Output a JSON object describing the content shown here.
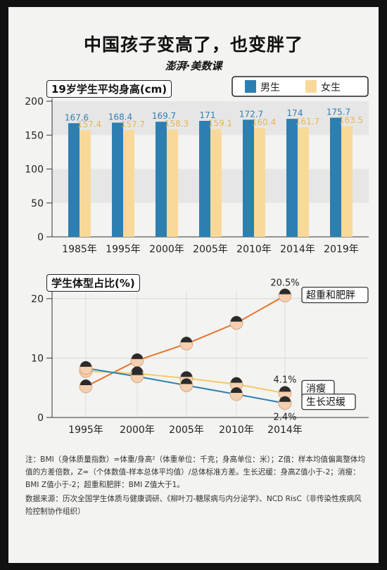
{
  "title": "中国孩子变高了，也变胖了",
  "brand": "澎湃·美数课",
  "chart_data": [
    {
      "type": "bar",
      "title": "19岁学生平均身高(cm)",
      "categories": [
        "1985年",
        "1995年",
        "2000年",
        "2005年",
        "2010年",
        "2014年",
        "2019年"
      ],
      "series": [
        {
          "name": "男生",
          "values": [
            167.6,
            168.4,
            169.7,
            171,
            172.7,
            174,
            175.7
          ],
          "labels": [
            "167.6",
            "168.4",
            "169.7",
            "171",
            "172.7",
            "174",
            "175.7"
          ],
          "color": "#2d7fb0"
        },
        {
          "name": "女生",
          "values": [
            157.4,
            157.7,
            158.3,
            159.1,
            160.4,
            161.7,
            163.5
          ],
          "labels": [
            "157.4",
            "157.7",
            "158.3",
            "159.1",
            "160.4",
            "161.7",
            "163.5"
          ],
          "color": "#f9d999"
        }
      ],
      "yticks": [
        "0",
        "50",
        "100",
        "150",
        "200"
      ],
      "ylim": [
        0,
        200
      ],
      "legend": "top-right"
    },
    {
      "type": "line",
      "title": "学生体型占比(%)",
      "categories": [
        "1995年",
        "2000年",
        "2005年",
        "2010年",
        "2014年"
      ],
      "series": [
        {
          "name": "超重和肥胖",
          "values": [
            5.2,
            9.6,
            12.4,
            15.9,
            20.5
          ],
          "color": "#e5742e"
        },
        {
          "name": "消瘦",
          "values": [
            7.8,
            7.4,
            6.6,
            5.6,
            4.1
          ],
          "color": "#f3ca62"
        },
        {
          "name": "生长迟缓",
          "values": [
            8.3,
            6.9,
            5.4,
            3.9,
            2.4
          ],
          "color": "#2d7fb0"
        }
      ],
      "annotations": [
        "20.5%",
        "4.1%",
        "2.4%"
      ],
      "yticks": [
        "0",
        "10",
        "20"
      ],
      "ylim": [
        0,
        22
      ]
    }
  ],
  "notes": [
    "注：BMI（身体质量指数）=体重/身高²（体重单位：千克；身高单位：米）；Z值：样本均值偏离整体均值的方差倍数，Z=（个体数值-样本总体平均值）/总体标准方差。生长迟缓：身高Z值小于-2；消瘦：BMI Z值小于-2；超重和肥胖：BMI Z值大于1。",
    "数据来源：历次全国学生体质与健康调研、《柳叶刀-糖尿病与内分泌学》、NCD RisC（非传染性疾病风险控制协作组织）"
  ]
}
